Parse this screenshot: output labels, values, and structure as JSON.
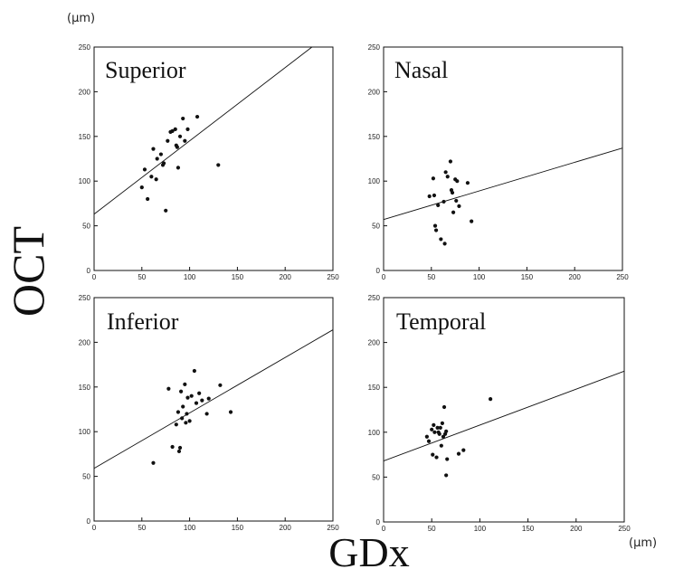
{
  "figure": {
    "y_unit": "(μm)",
    "x_unit": "(μm)",
    "y_label": "OCT",
    "x_label": "GDx"
  },
  "chart_data": [
    {
      "type": "scatter",
      "title": "Superior",
      "xlim": [
        0,
        250
      ],
      "ylim": [
        0,
        250
      ],
      "xticks": [
        "0",
        "50",
        "100",
        "150",
        "200",
        "250"
      ],
      "yticks": [
        "0",
        "50",
        "100",
        "150",
        "200",
        "250"
      ],
      "regression": {
        "slope": 0.82,
        "intercept": 63
      },
      "points": [
        [
          50,
          93
        ],
        [
          53,
          113
        ],
        [
          56,
          80
        ],
        [
          60,
          105
        ],
        [
          62,
          136
        ],
        [
          65,
          102
        ],
        [
          66,
          125
        ],
        [
          70,
          130
        ],
        [
          72,
          118
        ],
        [
          73,
          120
        ],
        [
          75,
          67
        ],
        [
          77,
          145
        ],
        [
          80,
          155
        ],
        [
          82,
          156
        ],
        [
          85,
          158
        ],
        [
          86,
          140
        ],
        [
          87,
          138
        ],
        [
          88,
          115
        ],
        [
          90,
          150
        ],
        [
          93,
          170
        ],
        [
          95,
          145
        ],
        [
          98,
          158
        ],
        [
          108,
          172
        ],
        [
          130,
          118
        ]
      ]
    },
    {
      "type": "scatter",
      "title": "Nasal",
      "xlim": [
        0,
        250
      ],
      "ylim": [
        0,
        250
      ],
      "xticks": [
        "0",
        "50",
        "100",
        "150",
        "200",
        "250"
      ],
      "yticks": [
        "0",
        "50",
        "100",
        "150",
        "200",
        "250"
      ],
      "regression": {
        "slope": 0.32,
        "intercept": 57
      },
      "points": [
        [
          48,
          83
        ],
        [
          52,
          103
        ],
        [
          53,
          84
        ],
        [
          54,
          50
        ],
        [
          55,
          45
        ],
        [
          57,
          73
        ],
        [
          60,
          35
        ],
        [
          63,
          77
        ],
        [
          64,
          30
        ],
        [
          65,
          110
        ],
        [
          67,
          105
        ],
        [
          70,
          122
        ],
        [
          71,
          90
        ],
        [
          72,
          87
        ],
        [
          73,
          65
        ],
        [
          75,
          102
        ],
        [
          76,
          78
        ],
        [
          77,
          100
        ],
        [
          79,
          72
        ],
        [
          88,
          98
        ],
        [
          92,
          55
        ]
      ]
    },
    {
      "type": "scatter",
      "title": "Inferior",
      "xlim": [
        0,
        250
      ],
      "ylim": [
        0,
        250
      ],
      "xticks": [
        "0",
        "50",
        "100",
        "150",
        "200",
        "250"
      ],
      "yticks": [
        "0",
        "50",
        "100",
        "150",
        "200",
        "250"
      ],
      "regression": {
        "slope": 0.62,
        "intercept": 59
      },
      "points": [
        [
          62,
          65
        ],
        [
          78,
          148
        ],
        [
          82,
          83
        ],
        [
          86,
          108
        ],
        [
          88,
          122
        ],
        [
          89,
          78
        ],
        [
          90,
          82
        ],
        [
          91,
          145
        ],
        [
          92,
          115
        ],
        [
          93,
          128
        ],
        [
          95,
          153
        ],
        [
          96,
          110
        ],
        [
          97,
          120
        ],
        [
          98,
          138
        ],
        [
          100,
          112
        ],
        [
          102,
          140
        ],
        [
          105,
          168
        ],
        [
          107,
          132
        ],
        [
          110,
          143
        ],
        [
          113,
          135
        ],
        [
          118,
          120
        ],
        [
          120,
          137
        ],
        [
          132,
          152
        ],
        [
          143,
          122
        ]
      ]
    },
    {
      "type": "scatter",
      "title": "Temporal",
      "xlim": [
        0,
        250
      ],
      "ylim": [
        0,
        250
      ],
      "xticks": [
        "0",
        "50",
        "100",
        "150",
        "200",
        "250"
      ],
      "yticks": [
        "0",
        "50",
        "100",
        "150",
        "200",
        "250"
      ],
      "regression": {
        "slope": 0.4,
        "intercept": 68
      },
      "points": [
        [
          45,
          95
        ],
        [
          47,
          90
        ],
        [
          50,
          103
        ],
        [
          51,
          75
        ],
        [
          52,
          108
        ],
        [
          53,
          100
        ],
        [
          55,
          72
        ],
        [
          56,
          105
        ],
        [
          57,
          100
        ],
        [
          58,
          98
        ],
        [
          59,
          105
        ],
        [
          60,
          85
        ],
        [
          61,
          110
        ],
        [
          62,
          95
        ],
        [
          63,
          128
        ],
        [
          64,
          98
        ],
        [
          65,
          101
        ],
        [
          65,
          52
        ],
        [
          66,
          70
        ],
        [
          78,
          76
        ],
        [
          83,
          80
        ],
        [
          111,
          137
        ]
      ]
    }
  ]
}
